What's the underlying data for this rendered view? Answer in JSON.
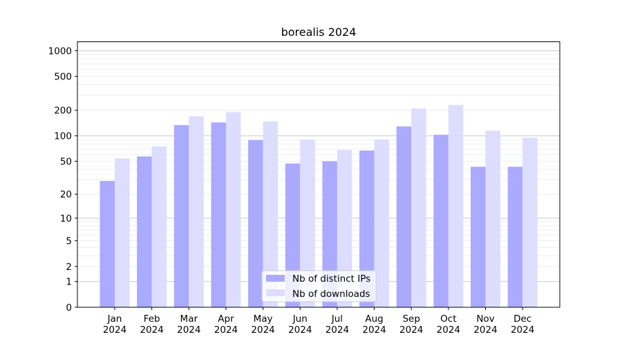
{
  "chart_data": {
    "type": "bar",
    "title": "borealis 2024",
    "xlabel": "",
    "ylabel": "",
    "yscale": "log(1+x)",
    "ylim": [
      0,
      1270
    ],
    "yticks": [
      0,
      1,
      2,
      5,
      10,
      20,
      50,
      100,
      200,
      500,
      1000
    ],
    "grid": true,
    "legend_position": "bottom-center",
    "categories": [
      "Jan\n2024",
      "Feb\n2024",
      "Mar\n2024",
      "Apr\n2024",
      "May\n2024",
      "Jun\n2024",
      "Jul\n2024",
      "Aug\n2024",
      "Sep\n2024",
      "Oct\n2024",
      "Nov\n2024",
      "Dec\n2024"
    ],
    "series": [
      {
        "name": "Nb of distinct IPs",
        "color": "#aaaaff",
        "values": [
          29,
          57,
          134,
          144,
          89,
          47,
          50,
          67,
          129,
          103,
          43,
          43
        ]
      },
      {
        "name": "Nb of downloads",
        "color": "#ddddff",
        "values": [
          54,
          75,
          170,
          190,
          148,
          90,
          68,
          90,
          210,
          230,
          115,
          95
        ]
      }
    ]
  }
}
